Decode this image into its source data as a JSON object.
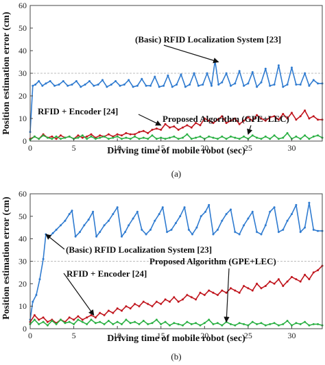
{
  "ylabel": "Position estimation error (cm)",
  "chart_data": [
    {
      "type": "line",
      "panel_label": "(a)",
      "xlabel": "Driving time of mobile robot (sec)",
      "xlim": [
        0,
        33.5
      ],
      "ylim": [
        0,
        60
      ],
      "xticks": [
        0,
        5,
        10,
        15,
        20,
        25,
        30
      ],
      "yticks": [
        0,
        10,
        20,
        30,
        40,
        50,
        60
      ],
      "reference_line": 30,
      "grid": false,
      "colors": [
        "#2f7bd0",
        "#c0141c",
        "#2ab043"
      ],
      "series": [
        {
          "name": "(Basic) RFID Localization System [23]",
          "x": [
            0,
            0.3,
            0.6,
            1,
            1.4,
            1.8,
            2.3,
            2.8,
            3.3,
            3.8,
            4.3,
            4.8,
            5.3,
            5.8,
            6.3,
            6.8,
            7.3,
            7.8,
            8.3,
            8.8,
            9.3,
            9.8,
            10.3,
            10.8,
            11.3,
            11.8,
            12.3,
            12.8,
            13.3,
            13.8,
            14.3,
            14.8,
            15.3,
            15.8,
            16.3,
            16.8,
            17.3,
            17.8,
            18.3,
            18.8,
            19.3,
            19.8,
            20.3,
            20.8,
            21.2,
            21.6,
            22,
            22.5,
            23,
            23.5,
            24,
            24.5,
            25,
            25.5,
            26,
            26.5,
            27,
            27.5,
            28,
            28.5,
            29,
            29.5,
            30,
            30.5,
            31,
            31.5,
            32,
            32.5,
            33,
            33.5
          ],
          "values": [
            4,
            24.5,
            25,
            26.5,
            24.5,
            25.5,
            26.5,
            24.5,
            25,
            26.5,
            24.5,
            25,
            26.5,
            24,
            25,
            26.5,
            24.5,
            25,
            27,
            24,
            25,
            26.5,
            24.5,
            25,
            27,
            24,
            24.5,
            27.5,
            24.5,
            24.5,
            28.5,
            24,
            24.5,
            29,
            24,
            25,
            29.5,
            24,
            25,
            30,
            24.5,
            25,
            30,
            24.5,
            35.5,
            25,
            26,
            30,
            24.5,
            25.5,
            31,
            24.5,
            25.5,
            30.5,
            24,
            26,
            32,
            24.5,
            25,
            33.5,
            24,
            25,
            32.5,
            25,
            25,
            30,
            24.5,
            27,
            25.5,
            25.5
          ]
        },
        {
          "name": "RFID + Encoder [24]",
          "x": [
            0,
            0.5,
            1,
            1.5,
            2,
            2.5,
            3,
            3.5,
            4,
            4.5,
            5,
            5.5,
            6,
            6.5,
            7,
            7.5,
            8,
            8.5,
            9,
            9.5,
            10,
            10.5,
            11,
            11.5,
            12,
            12.5,
            13,
            13.5,
            14,
            14.5,
            15,
            15.5,
            16,
            16.5,
            17,
            17.5,
            18,
            18.5,
            19,
            19.5,
            20,
            20.5,
            21,
            21.5,
            22,
            22.5,
            23,
            23.5,
            24,
            24.5,
            25,
            25.5,
            26,
            26.5,
            27,
            27.5,
            28,
            28.5,
            29,
            29.5,
            30,
            30.5,
            31,
            31.5,
            32,
            32.5,
            33,
            33.5
          ],
          "values": [
            1,
            2,
            1,
            3,
            1.5,
            2,
            1,
            2.5,
            1.5,
            2,
            1,
            2.5,
            1.5,
            2,
            3,
            1.5,
            2.5,
            2,
            3,
            2,
            3,
            2.5,
            3.5,
            3,
            3,
            4,
            4.5,
            3.5,
            5,
            5.5,
            5,
            7.5,
            6,
            6.5,
            5,
            6,
            7,
            6,
            8,
            7,
            10,
            9,
            8,
            9.5,
            11,
            8,
            9,
            10,
            7.5,
            9,
            10.5,
            9,
            11.5,
            10,
            9,
            10.5,
            11,
            9.5,
            12,
            10,
            12.5,
            9.5,
            11,
            13.5,
            10,
            11,
            9.5,
            9.5
          ]
        },
        {
          "name": "Proposed Algorithm (GPE+LEC)",
          "x": [
            0,
            0.5,
            1,
            1.5,
            2,
            2.5,
            3,
            3.5,
            4,
            4.5,
            5,
            5.5,
            6,
            6.5,
            7,
            7.5,
            8,
            8.5,
            9,
            9.5,
            10,
            10.5,
            11,
            11.5,
            12,
            12.5,
            13,
            13.5,
            14,
            14.5,
            15,
            15.5,
            16,
            16.5,
            17,
            17.5,
            18,
            18.5,
            19,
            19.5,
            20,
            20.5,
            21,
            21.5,
            22,
            22.5,
            23,
            23.5,
            24,
            24.5,
            25,
            25.5,
            26,
            26.5,
            27,
            27.5,
            28,
            28.5,
            29,
            29.5,
            30,
            30.5,
            31,
            31.5,
            32,
            32.5,
            33,
            33.5
          ],
          "values": [
            0.5,
            2,
            1,
            2.5,
            1.5,
            1,
            2,
            1,
            1.5,
            2,
            1,
            1.5,
            2.5,
            1,
            2,
            1,
            1.5,
            2,
            1,
            1.5,
            2,
            1,
            1.5,
            1,
            2,
            1,
            1.5,
            1,
            2.5,
            1,
            1.5,
            1,
            1.5,
            2,
            1,
            1.5,
            3,
            1,
            1.5,
            2,
            1,
            2,
            1.5,
            1,
            2,
            1,
            2,
            1.5,
            1,
            2,
            1,
            2.5,
            1.5,
            1,
            2,
            1,
            2.5,
            1,
            1.5,
            3.5,
            1,
            2,
            1,
            2.5,
            1,
            2,
            2.5,
            1.5
          ]
        }
      ],
      "annotations": [
        {
          "text": "(Basic) RFID Localization System [23]",
          "arrow_to": [
            21.6,
            35
          ]
        },
        {
          "text": "RFID + Encoder [24]",
          "arrow_to": [
            15,
            7
          ]
        },
        {
          "text": "Proposed Algorithm (GPE+LEC)",
          "arrow_to": [
            25,
            3
          ]
        }
      ]
    },
    {
      "type": "line",
      "panel_label": "(b)",
      "xlabel": "Driving time of mobile robot (sec)",
      "xlim": [
        0,
        33.5
      ],
      "ylim": [
        0,
        60
      ],
      "xticks": [
        0,
        5,
        10,
        15,
        20,
        25,
        30
      ],
      "yticks": [
        0,
        10,
        20,
        30,
        40,
        50,
        60
      ],
      "reference_line": 30,
      "grid": false,
      "colors": [
        "#2f7bd0",
        "#c0141c",
        "#2ab043"
      ],
      "series": [
        {
          "name": "(Basic) RFID Localization System [23]",
          "x": [
            0,
            0.3,
            0.7,
            1.1,
            1.5,
            1.8,
            2.2,
            2.6,
            3,
            3.5,
            4,
            4.5,
            4.8,
            5.2,
            5.7,
            6.2,
            6.7,
            7.2,
            7.6,
            8,
            8.5,
            9,
            9.5,
            10,
            10.5,
            10.9,
            11.3,
            11.8,
            12.3,
            12.8,
            13.3,
            13.8,
            14.3,
            14.8,
            15.2,
            15.7,
            16.2,
            16.7,
            17.2,
            17.7,
            18.2,
            18.6,
            19.1,
            19.6,
            20.1,
            20.5,
            21,
            21.5,
            22,
            22.5,
            23,
            23.5,
            24,
            24.5,
            25,
            25.5,
            26,
            26.5,
            27,
            27.5,
            28,
            28.5,
            29,
            29.5,
            30,
            30.5,
            31,
            31.5,
            32,
            32.5,
            33,
            33.5
          ],
          "values": [
            4,
            12,
            15,
            22,
            31,
            42,
            41,
            42.5,
            44,
            46,
            48,
            51,
            52.5,
            41,
            43,
            46,
            48.5,
            52,
            41,
            43,
            46,
            48,
            51,
            54,
            41,
            43,
            46,
            49,
            52,
            44,
            42,
            44,
            48,
            51,
            54,
            43,
            44,
            47,
            50,
            54,
            44,
            42,
            45,
            50,
            52,
            55,
            42,
            44,
            48,
            51,
            53,
            43,
            42,
            46,
            49,
            52,
            43,
            42,
            46,
            52,
            54,
            43,
            44,
            48,
            51,
            55,
            43,
            45,
            56,
            44,
            43.5,
            43.5
          ]
        },
        {
          "name": "RFID + Encoder [24]",
          "x": [
            0,
            0.5,
            1,
            1.5,
            2,
            2.5,
            3,
            3.5,
            4,
            4.5,
            5,
            5.5,
            6,
            6.5,
            7,
            7.5,
            8,
            8.5,
            9,
            9.5,
            10,
            10.5,
            11,
            11.5,
            12,
            12.5,
            13,
            13.5,
            14,
            14.5,
            15,
            15.5,
            16,
            16.5,
            17,
            17.5,
            18,
            18.5,
            19,
            19.5,
            20,
            20.5,
            21,
            21.5,
            22,
            22.5,
            23,
            23.5,
            24,
            24.5,
            25,
            25.5,
            26,
            26.5,
            27,
            27.5,
            28,
            28.5,
            29,
            29.5,
            30,
            30.5,
            31,
            31.5,
            32,
            32.5,
            33,
            33.5
          ],
          "values": [
            3,
            6,
            4,
            5,
            3,
            4,
            2.5,
            4,
            3,
            5,
            4,
            5.5,
            4,
            5,
            6,
            5,
            7,
            6,
            8,
            7,
            9,
            8,
            10,
            9,
            11,
            10,
            12,
            11,
            10,
            12,
            11,
            13,
            12,
            14,
            12,
            13,
            15,
            14,
            13,
            16,
            15,
            17,
            16,
            15,
            17,
            16,
            18,
            17,
            16,
            19,
            18,
            17,
            20,
            18,
            19,
            21,
            20,
            22,
            19,
            21,
            23,
            22,
            21,
            24,
            22,
            25,
            26,
            28
          ]
        },
        {
          "name": "Proposed Algorithm (GPE+LEC)",
          "x": [
            0,
            0.5,
            1,
            1.5,
            2,
            2.5,
            3,
            3.5,
            4,
            4.5,
            5,
            5.5,
            6,
            6.5,
            7,
            7.5,
            8,
            8.5,
            9,
            9.5,
            10,
            10.5,
            11,
            11.5,
            12,
            12.5,
            13,
            13.5,
            14,
            14.5,
            15,
            15.5,
            16,
            16.5,
            17,
            17.5,
            18,
            18.5,
            19,
            19.5,
            20,
            20.5,
            21,
            21.5,
            22,
            22.5,
            23,
            23.5,
            24,
            24.5,
            25,
            25.5,
            26,
            26.5,
            27,
            27.5,
            28,
            28.5,
            29,
            29.5,
            30,
            30.5,
            31,
            31.5,
            32,
            32.5,
            33,
            33.5
          ],
          "values": [
            2,
            4,
            2,
            3,
            1.5,
            3.5,
            2,
            4,
            2.5,
            3,
            2,
            4,
            3,
            2,
            4,
            2.5,
            3,
            2,
            3.5,
            2,
            3,
            2,
            4,
            2.5,
            3,
            2,
            3.5,
            2,
            2.5,
            4,
            2,
            3,
            1.5,
            2.5,
            2,
            1.5,
            3,
            2,
            2.5,
            1.5,
            2.5,
            4,
            2,
            2.5,
            1.5,
            3,
            2,
            1.5,
            2.5,
            2,
            1.5,
            3,
            2,
            2.5,
            1.5,
            2,
            2.5,
            1.5,
            2,
            3.5,
            1.5,
            2.5,
            2,
            3,
            1.5,
            2,
            2,
            1.5
          ]
        }
      ],
      "annotations": [
        {
          "text": "(Basic) RFID Localization System [23]",
          "arrow_to": [
            1.8,
            42
          ]
        },
        {
          "text": "RFID + Encoder [24]",
          "arrow_to": [
            7.3,
            6
          ]
        },
        {
          "text": "Proposed Algorithm (GPE+LEC)",
          "arrow_to": [
            22.5,
            3
          ]
        }
      ]
    }
  ]
}
